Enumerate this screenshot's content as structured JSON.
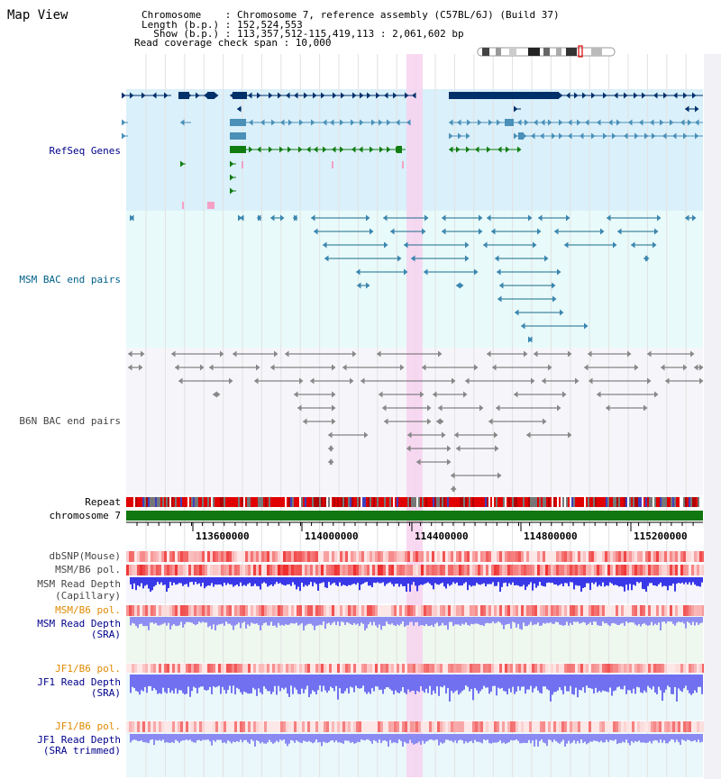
{
  "title": "Map View",
  "info": {
    "chromosome": "Chromosome    : Chromosome 7, reference assembly (C57BL/6J) (Build 37)",
    "length": "Length (b.p.) : 152,524,553",
    "show": "  Show (b.p.) : 113,357,512-115,419,113 : 2,061,602 bp",
    "coverage": "Read coverage check span : 10,000"
  },
  "tracks": {
    "refseq": "RefSeq Genes",
    "msm_bac": "MSM BAC end pairs",
    "b6n_bac": "B6N BAC end pairs",
    "repeat": "Repeat",
    "chromosome": "chromosome 7",
    "dbsnp": "dbSNP(Mouse)",
    "msm_pol1": "MSM/B6 pol.",
    "msm_depth_cap_1": "MSM Read Depth",
    "msm_depth_cap_2": "(Capillary)",
    "msm_pol2": "MSM/B6 pol.",
    "msm_depth_sra_1": "MSM Read Depth",
    "msm_depth_sra_2": "(SRA)",
    "jf1_pol1": "JF1/B6 pol.",
    "jf1_depth_1": "JF1 Read Depth",
    "jf1_depth_2": "(SRA)",
    "jf1_pol2": "JF1/B6 pol.",
    "jf1_trim_1": "JF1 Read Depth",
    "jf1_trim_2": "(SRA trimmed)"
  },
  "axis": {
    "ticks": [
      "113600000",
      "114000000",
      "114400000",
      "114800000",
      "115200000"
    ]
  },
  "colors": {
    "refseq_bg": "#daf0fa",
    "bac_bg": "#e8fafa",
    "b6n_bg": "#f6f6fa",
    "highlight": "#f7d2ee",
    "refseq_dark": "#00306a",
    "refseq_mid": "#4a90b8",
    "refseq_green": "#117d11",
    "bac_line": "#1a6b8a",
    "b6n_line": "#555555",
    "chromosome_bar": "#117711",
    "label_navy": "#00008b",
    "label_orange": "#e08a00"
  }
}
